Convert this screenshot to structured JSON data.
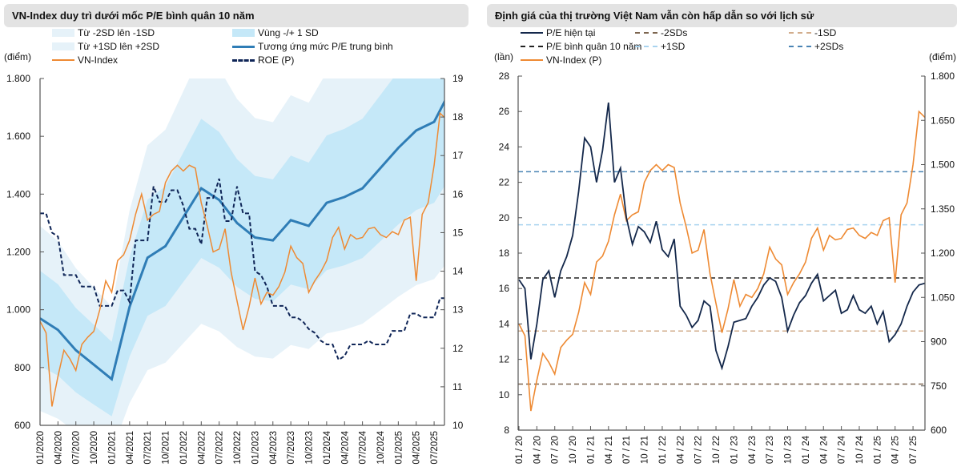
{
  "chart_data": [
    {
      "type": "line",
      "title": "VN-Index duy trì dưới mốc P/E bình quân 10 năm",
      "y_unit_left": "(điểm)",
      "legend": [
        {
          "label": "Từ -2SD lên -1SD",
          "color": "#e6f2f9",
          "style": "fill"
        },
        {
          "label": "Vùng -/+ 1 SD",
          "color": "#c5e8f8",
          "style": "fill"
        },
        {
          "label": "Từ +1SD lên +2SD",
          "color": "#e6f2f9",
          "style": "fill"
        },
        {
          "label": "Tương ứng mức P/E trung bình",
          "color": "#2f7db6",
          "style": "line"
        },
        {
          "label": "VN-Index",
          "color": "#ee8a33",
          "style": "line"
        },
        {
          "label": "ROE (P)",
          "color": "#0f2557",
          "style": "dash"
        }
      ],
      "x_ticks": [
        "01/2020",
        "04/2020",
        "07/2020",
        "10/2020",
        "01/2021",
        "04/2021",
        "07/2021",
        "10/2021",
        "01/2022",
        "04/2022",
        "07/2022",
        "10/2022",
        "01/2023",
        "04/2023",
        "07/2023",
        "10/2023",
        "01/2024",
        "04/2024",
        "07/2024",
        "10/2024",
        "01/2025",
        "04/2025",
        "07/2025"
      ],
      "y_left": {
        "range": [
          600,
          1800
        ],
        "ticks": [
          "600",
          "800",
          "1.000",
          "1.200",
          "1.400",
          "1.600",
          "1.800"
        ]
      },
      "y_right": {
        "range": [
          10,
          19
        ],
        "ticks": [
          "10",
          "11",
          "12",
          "13",
          "14",
          "15",
          "16",
          "17",
          "18",
          "19"
        ]
      },
      "dates": [
        "2020-01",
        "2020-02",
        "2020-03",
        "2020-04",
        "2020-05",
        "2020-06",
        "2020-07",
        "2020-08",
        "2020-09",
        "2020-10",
        "2020-11",
        "2020-12",
        "2021-01",
        "2021-02",
        "2021-03",
        "2021-04",
        "2021-05",
        "2021-06",
        "2021-07",
        "2021-08",
        "2021-09",
        "2021-10",
        "2021-11",
        "2021-12",
        "2022-01",
        "2022-02",
        "2022-03",
        "2022-04",
        "2022-05",
        "2022-06",
        "2022-07",
        "2022-08",
        "2022-09",
        "2022-10",
        "2022-11",
        "2022-12",
        "2023-01",
        "2023-02",
        "2023-03",
        "2023-04",
        "2023-05",
        "2023-06",
        "2023-07",
        "2023-08",
        "2023-09",
        "2023-10",
        "2023-11",
        "2023-12",
        "2024-01",
        "2024-02",
        "2024-03",
        "2024-04",
        "2024-05",
        "2024-06",
        "2024-07",
        "2024-08",
        "2024-09",
        "2024-10",
        "2024-11",
        "2024-12",
        "2025-01",
        "2025-02",
        "2025-03",
        "2025-04",
        "2025-05",
        "2025-06",
        "2025-07",
        "2025-08",
        "2025-09"
      ],
      "vn_index": [
        960,
        920,
        665,
        770,
        860,
        830,
        790,
        880,
        905,
        925,
        1000,
        1100,
        1060,
        1170,
        1190,
        1240,
        1330,
        1400,
        1310,
        1330,
        1340,
        1440,
        1480,
        1500,
        1480,
        1500,
        1490,
        1370,
        1290,
        1200,
        1210,
        1280,
        1130,
        1030,
        930,
        1010,
        1110,
        1020,
        1060,
        1050,
        1080,
        1130,
        1220,
        1180,
        1160,
        1060,
        1100,
        1130,
        1170,
        1250,
        1285,
        1210,
        1260,
        1245,
        1250,
        1280,
        1285,
        1260,
        1250,
        1270,
        1260,
        1310,
        1320,
        1100,
        1330,
        1370,
        1500,
        1680,
        1660
      ],
      "roe": [
        15.5,
        15.5,
        15.0,
        14.9,
        13.9,
        13.9,
        13.9,
        13.6,
        13.6,
        13.6,
        13.1,
        13.1,
        13.1,
        13.5,
        13.5,
        13.2,
        14.8,
        14.8,
        14.8,
        16.2,
        15.8,
        15.8,
        16.1,
        16.1,
        15.7,
        15.1,
        15.1,
        14.7,
        15.9,
        15.9,
        16.4,
        15.3,
        15.3,
        16.2,
        15.5,
        15.5,
        14.0,
        13.9,
        13.6,
        13.1,
        13.1,
        13.1,
        12.8,
        12.8,
        12.7,
        12.5,
        12.4,
        12.2,
        12.1,
        12.1,
        11.7,
        11.8,
        12.1,
        12.1,
        12.1,
        12.2,
        12.1,
        12.1,
        12.1,
        12.45,
        12.45,
        12.45,
        12.9,
        12.9,
        12.8,
        12.8,
        12.8,
        13.3,
        13.3
      ],
      "band_dates": [
        "2020-01",
        "2020-04",
        "2020-07",
        "2020-10",
        "2021-01",
        "2021-04",
        "2021-07",
        "2021-10",
        "2022-01",
        "2022-04",
        "2022-07",
        "2022-10",
        "2023-01",
        "2023-04",
        "2023-07",
        "2023-10",
        "2024-01",
        "2024-04",
        "2024-07",
        "2024-10",
        "2025-01",
        "2025-04",
        "2025-07",
        "2025-09"
      ],
      "pe_mean_equivalent": [
        970,
        930,
        860,
        810,
        760,
        1010,
        1180,
        1220,
        1320,
        1420,
        1380,
        1300,
        1250,
        1240,
        1310,
        1290,
        1370,
        1390,
        1420,
        1490,
        1560,
        1620,
        1650,
        1730
      ],
      "minus_2sd": [
        650,
        623,
        576,
        543,
        509,
        677,
        791,
        817,
        884,
        951,
        925,
        871,
        838,
        831,
        878,
        864,
        918,
        931,
        951,
        998,
        1045,
        1085,
        1106,
        1159
      ],
      "minus_1sd": [
        805,
        772,
        714,
        672,
        631,
        838,
        979,
        1013,
        1096,
        1179,
        1145,
        1079,
        1038,
        1029,
        1087,
        1071,
        1137,
        1154,
        1179,
        1237,
        1295,
        1345,
        1370,
        1436
      ],
      "plus_1sd": [
        1135,
        1088,
        1006,
        948,
        889,
        1182,
        1381,
        1427,
        1544,
        1661,
        1615,
        1521,
        1463,
        1451,
        1533,
        1509,
        1603,
        1626,
        1661,
        1743,
        1825,
        1895,
        1931,
        2024
      ],
      "plus_2sd": [
        1290,
        1237,
        1144,
        1077,
        1011,
        1343,
        1569,
        1623,
        1756,
        1889,
        1835,
        1729,
        1663,
        1649,
        1742,
        1716,
        1822,
        1849,
        1889,
        1982,
        2075,
        2155,
        2195,
        2301
      ]
    },
    {
      "type": "line",
      "title": "Định giá của thị trường Việt Nam vẫn còn hấp dẫn so với lịch sử",
      "y_unit_left": "(lần)",
      "y_unit_right": "(điểm)",
      "legend": [
        {
          "label": "P/E hiện tại",
          "color": "#14284b",
          "style": "line"
        },
        {
          "label": "-2SDs",
          "color": "#7d6650",
          "style": "dash"
        },
        {
          "label": "-1SD",
          "color": "#d2ad8c",
          "style": "dash"
        },
        {
          "label": "P/E bình quân 10 năm",
          "color": "#222222",
          "style": "dash"
        },
        {
          "label": "+1SD",
          "color": "#a8d3ef",
          "style": "dash"
        },
        {
          "label": "+2SDs",
          "color": "#4a84b4",
          "style": "dash"
        },
        {
          "label": "VN-Index (P)",
          "color": "#ee8a33",
          "style": "line"
        }
      ],
      "x_ticks": [
        "01 / 20",
        "04 / 20",
        "07 / 20",
        "10 / 20",
        "01 / 21",
        "04 / 21",
        "07 / 21",
        "10 / 21",
        "01 / 22",
        "04 / 22",
        "07 / 22",
        "10 / 22",
        "01 / 23",
        "04 / 23",
        "07 / 23",
        "10 / 23",
        "01 / 24",
        "04 / 24",
        "07 / 24",
        "10 / 24",
        "01 / 25",
        "04 / 25",
        "07 / 25"
      ],
      "y_left": {
        "range": [
          8,
          28
        ],
        "ticks": [
          "8",
          "10",
          "12",
          "14",
          "16",
          "18",
          "20",
          "22",
          "24",
          "26",
          "28"
        ]
      },
      "y_right": {
        "range": [
          600,
          1800
        ],
        "ticks": [
          "600",
          "750",
          "900",
          "1.050",
          "1.200",
          "1.350",
          "1.500",
          "1.650",
          "1.800"
        ]
      },
      "reference_lines": {
        "p_e_10y_avg": 16.6,
        "minus_2sd": 10.6,
        "minus_1sd": 13.6,
        "plus_1sd": 19.6,
        "plus_2sd": 22.6
      },
      "dates": [
        "2020-01",
        "2020-02",
        "2020-03",
        "2020-04",
        "2020-05",
        "2020-06",
        "2020-07",
        "2020-08",
        "2020-09",
        "2020-10",
        "2020-11",
        "2020-12",
        "2021-01",
        "2021-02",
        "2021-03",
        "2021-04",
        "2021-05",
        "2021-06",
        "2021-07",
        "2021-08",
        "2021-09",
        "2021-10",
        "2021-11",
        "2021-12",
        "2022-01",
        "2022-02",
        "2022-03",
        "2022-04",
        "2022-05",
        "2022-06",
        "2022-07",
        "2022-08",
        "2022-09",
        "2022-10",
        "2022-11",
        "2022-12",
        "2023-01",
        "2023-02",
        "2023-03",
        "2023-04",
        "2023-05",
        "2023-06",
        "2023-07",
        "2023-08",
        "2023-09",
        "2023-10",
        "2023-11",
        "2023-12",
        "2024-01",
        "2024-02",
        "2024-03",
        "2024-04",
        "2024-05",
        "2024-06",
        "2024-07",
        "2024-08",
        "2024-09",
        "2024-10",
        "2024-11",
        "2024-12",
        "2025-01",
        "2025-02",
        "2025-03",
        "2025-04",
        "2025-05",
        "2025-06",
        "2025-07",
        "2025-08",
        "2025-09"
      ],
      "pe": [
        16.5,
        16.0,
        12.0,
        14.0,
        16.5,
        17.0,
        15.5,
        17.0,
        17.8,
        19.0,
        21.5,
        24.5,
        24.0,
        22.0,
        23.8,
        26.5,
        22.0,
        22.8,
        20.0,
        18.5,
        19.5,
        19.2,
        18.6,
        19.8,
        18.2,
        17.8,
        18.8,
        15.0,
        14.5,
        13.8,
        14.2,
        15.3,
        15.0,
        12.5,
        11.5,
        12.7,
        14.1,
        14.2,
        14.3,
        15.0,
        15.5,
        16.2,
        16.6,
        16.4,
        15.5,
        13.6,
        14.5,
        15.2,
        15.6,
        16.3,
        16.8,
        15.3,
        15.6,
        15.9,
        14.6,
        14.8,
        15.6,
        14.8,
        14.6,
        15.0,
        14.0,
        14.7,
        13.0,
        13.4,
        14.0,
        15.0,
        15.8,
        16.2,
        16.3
      ],
      "vn_index": [
        960,
        920,
        665,
        770,
        860,
        830,
        790,
        880,
        905,
        925,
        1000,
        1100,
        1060,
        1170,
        1190,
        1240,
        1330,
        1400,
        1310,
        1330,
        1340,
        1440,
        1480,
        1500,
        1480,
        1500,
        1490,
        1370,
        1290,
        1200,
        1210,
        1280,
        1130,
        1030,
        930,
        1010,
        1110,
        1020,
        1060,
        1050,
        1080,
        1130,
        1220,
        1180,
        1160,
        1060,
        1100,
        1130,
        1170,
        1250,
        1285,
        1210,
        1260,
        1245,
        1250,
        1280,
        1285,
        1260,
        1250,
        1270,
        1260,
        1310,
        1320,
        1100,
        1330,
        1370,
        1500,
        1680,
        1660
      ]
    }
  ]
}
